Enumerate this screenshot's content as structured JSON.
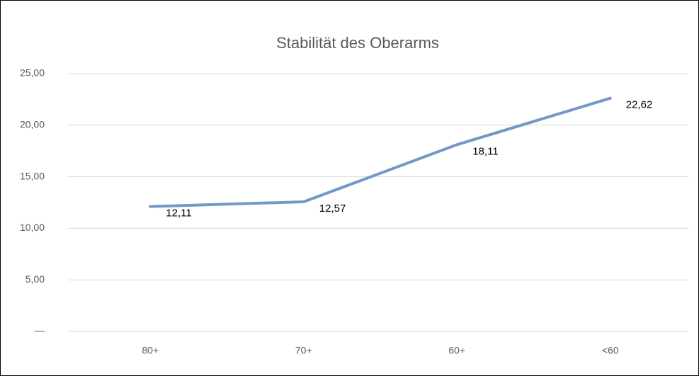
{
  "chart_data": {
    "type": "line",
    "title": "Stabilität des Oberarms",
    "categories": [
      "80+",
      "70+",
      "60+",
      "<60"
    ],
    "series": [
      {
        "name": null,
        "color": "#7597c8",
        "values": [
          12.11,
          12.57,
          18.11,
          22.62
        ],
        "value_labels": [
          "12,11",
          "12,57",
          "18,11",
          "22,62"
        ]
      }
    ],
    "ylim": [
      0,
      25
    ],
    "yticks": [
      {
        "value": 0,
        "label": "—"
      },
      {
        "value": 5,
        "label": "5,00"
      },
      {
        "value": 10,
        "label": "10,00"
      },
      {
        "value": 15,
        "label": "15,00"
      },
      {
        "value": 20,
        "label": "20,00"
      },
      {
        "value": 25,
        "label": "25,00"
      }
    ],
    "grid": true
  }
}
